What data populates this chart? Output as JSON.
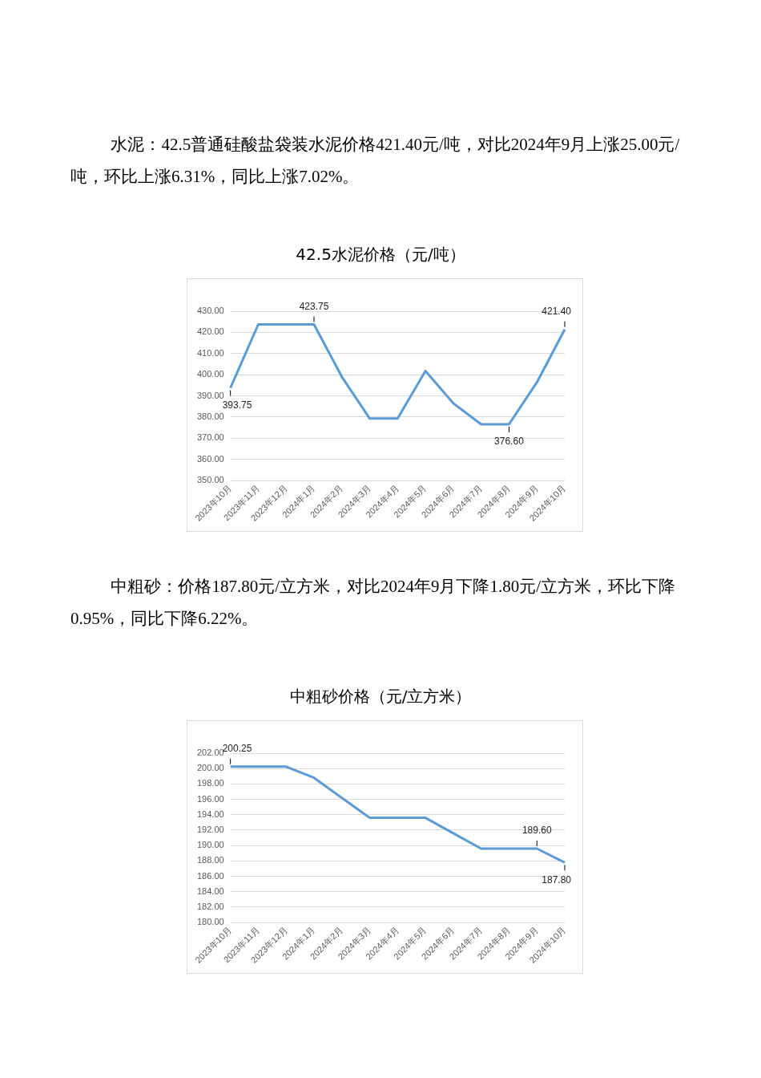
{
  "chart_data": [
    {
      "type": "line",
      "title": "42.5水泥价格（元/吨）",
      "annotations": [
        "水泥：42.5普通硅酸盐袋装水泥价格421.40元/吨，对比2024年9月上涨25.00元/吨，环比上涨6.31%，同比上涨7.02%。"
      ],
      "categories": [
        "2023年10月",
        "2023年11月",
        "2023年12月",
        "2024年1月",
        "2024年2月",
        "2024年3月",
        "2024年4月",
        "2024年5月",
        "2024年6月",
        "2024年7月",
        "2024年8月",
        "2024年9月",
        "2024年10月"
      ],
      "series": [
        {
          "color": "#5b9bd5",
          "values": [
            393.75,
            423.75,
            423.75,
            423.75,
            399.0,
            379.3,
            379.3,
            401.8,
            386.5,
            376.6,
            376.6,
            396.4,
            421.4
          ],
          "value_labels": [
            "393.75",
            null,
            null,
            "423.75",
            null,
            null,
            null,
            null,
            null,
            null,
            "376.60",
            null,
            "421.40"
          ]
        }
      ],
      "ylim": [
        350,
        430
      ],
      "yticks": [
        {
          "value": 350,
          "label": "350.00"
        },
        {
          "value": 360,
          "label": "360.00"
        },
        {
          "value": 370,
          "label": "370.00"
        },
        {
          "value": 380,
          "label": "380.00"
        },
        {
          "value": 390,
          "label": "390.00"
        },
        {
          "value": 400,
          "label": "400.00"
        },
        {
          "value": 410,
          "label": "410.00"
        },
        {
          "value": 420,
          "label": "420.00"
        },
        {
          "value": 430,
          "label": "430.00"
        }
      ],
      "grid": "y",
      "marker": "none"
    },
    {
      "type": "line",
      "title": "中粗砂价格（元/立方米）",
      "annotations": [
        "中粗砂：价格187.80元/立方米，对比2024年9月下降1.80元/立方米，环比下降0.95%，同比下降6.22%。"
      ],
      "categories": [
        "2023年10月",
        "2023年11月",
        "2023年12月",
        "2024年1月",
        "2024年2月",
        "2024年3月",
        "2024年4月",
        "2024年5月",
        "2024年6月",
        "2024年7月",
        "2024年8月",
        "2024年9月",
        "2024年10月"
      ],
      "series": [
        {
          "color": "#5b9bd5",
          "values": [
            200.25,
            200.25,
            200.25,
            198.8,
            196.2,
            193.6,
            193.6,
            193.6,
            191.6,
            189.6,
            189.6,
            189.6,
            187.8
          ],
          "value_labels": [
            "200.25",
            null,
            null,
            null,
            null,
            null,
            null,
            null,
            null,
            null,
            null,
            "189.60",
            "187.80"
          ]
        }
      ],
      "ylim": [
        180,
        202
      ],
      "yticks": [
        {
          "value": 180,
          "label": "180.00"
        },
        {
          "value": 182,
          "label": "182.00"
        },
        {
          "value": 184,
          "label": "184.00"
        },
        {
          "value": 186,
          "label": "186.00"
        },
        {
          "value": 188,
          "label": "188.00"
        },
        {
          "value": 190,
          "label": "190.00"
        },
        {
          "value": 192,
          "label": "192.00"
        },
        {
          "value": 194,
          "label": "194.00"
        },
        {
          "value": 196,
          "label": "196.00"
        },
        {
          "value": 198,
          "label": "198.00"
        },
        {
          "value": 200,
          "label": "200.00"
        },
        {
          "value": 202,
          "label": "202.00"
        }
      ],
      "grid": "y",
      "marker": "none"
    }
  ]
}
